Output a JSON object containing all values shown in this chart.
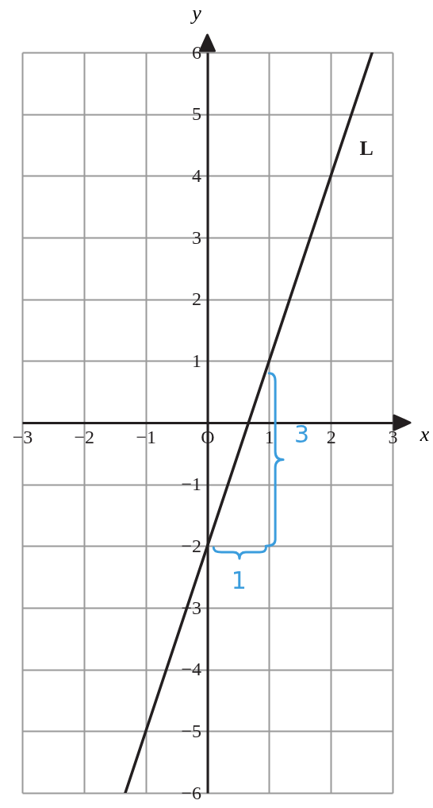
{
  "chart_data": {
    "type": "line",
    "xlabel": "x",
    "ylabel": "y",
    "x": [
      -1.33,
      0,
      1,
      2,
      2.67
    ],
    "series": [
      {
        "name": "L",
        "color": "#231f20",
        "values": [
          -6,
          -2,
          1,
          4,
          6
        ]
      }
    ],
    "xlim": [
      -3,
      3
    ],
    "ylim": [
      -6,
      6
    ],
    "xticks": [
      -3,
      -2,
      -1,
      {
        "value": 0,
        "label": "O"
      },
      1,
      2,
      3
    ],
    "yticks": [
      -6,
      -5,
      -4,
      -3,
      -2,
      -1,
      1,
      2,
      3,
      4,
      5,
      6
    ],
    "grid": true,
    "legend": false,
    "marker": "none",
    "line_style": "solid",
    "annotations": [
      "3",
      "1"
    ]
  }
}
